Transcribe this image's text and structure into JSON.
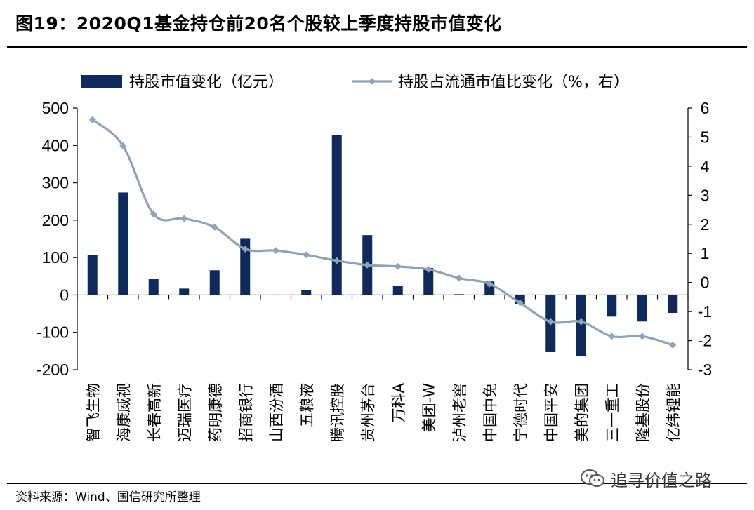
{
  "figure": {
    "title": "图19：2020Q1基金持仓前20名个股较上季度持股市值变化",
    "source": "资料来源：Wind、国信研究所整理",
    "watermark": "追寻价值之路"
  },
  "chart_data": {
    "type": "bar",
    "categories": [
      "智飞生物",
      "海康威视",
      "长春高新",
      "迈瑞医疗",
      "药明康德",
      "招商银行",
      "山西汾酒",
      "五粮液",
      "腾讯控股",
      "贵州茅台",
      "万科A",
      "美团-W",
      "泸州老窖",
      "中国中免",
      "宁德时代",
      "中国平安",
      "美的集团",
      "三一重工",
      "隆基股份",
      "亿纬锂能"
    ],
    "series": [
      {
        "name": "持股市值变化（亿元）",
        "type": "bar",
        "axis": "left",
        "color": "#0e2a5c",
        "values": [
          106,
          274,
          43,
          17,
          66,
          152,
          0,
          14,
          428,
          160,
          24,
          72,
          2,
          36,
          -25,
          -153,
          -163,
          -58,
          -71,
          -48
        ]
      },
      {
        "name": "持股占流通市值比变化（%，右）",
        "type": "line",
        "axis": "right",
        "color": "#8ea3b8",
        "values": [
          5.6,
          4.7,
          2.35,
          2.2,
          1.9,
          1.15,
          1.1,
          0.95,
          0.75,
          0.6,
          0.55,
          0.45,
          0.15,
          -0.05,
          -0.7,
          -1.35,
          -1.35,
          -1.85,
          -1.85,
          -2.15
        ]
      }
    ],
    "y_left": {
      "min": -200,
      "max": 500,
      "ticks": [
        500,
        400,
        300,
        200,
        100,
        0,
        -100,
        -200
      ]
    },
    "y_right": {
      "min": -3,
      "max": 6,
      "ticks": [
        6,
        5,
        4,
        3,
        2,
        1,
        0,
        -1,
        -2,
        -3
      ]
    },
    "legend": {
      "position": "top"
    },
    "grid": false
  }
}
